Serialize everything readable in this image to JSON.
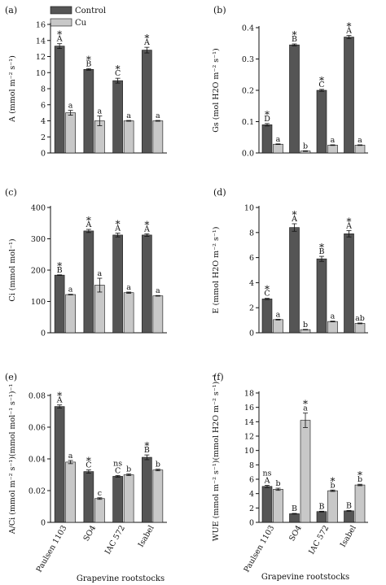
{
  "legend": [
    {
      "label": "Control",
      "color": "#555555"
    },
    {
      "label": "Cu",
      "color": "#c8c8c8"
    }
  ],
  "colors": {
    "control": "#555555",
    "cu": "#c8c8c8",
    "axis": "#111111"
  },
  "xlabel": "Grapevine rootstocks",
  "chart_data": [
    {
      "type": "bar",
      "panel_label": "(a)",
      "ylabel": "A (mmol m⁻² s⁻¹)",
      "categories": [
        "Paulsen 1103",
        "SO4",
        "IAC 572",
        "Isabel"
      ],
      "ylim": [
        0,
        16
      ],
      "yticks": [
        "0",
        "2",
        "4",
        "6",
        "8",
        "10",
        "12",
        "14",
        "16"
      ],
      "show_category_labels": false,
      "series": [
        {
          "name": "Control",
          "values": [
            13.3,
            10.4,
            9.0,
            12.8
          ],
          "errors": [
            0.3,
            0.1,
            0.3,
            0.35
          ],
          "labels": [
            "A",
            "B",
            "C",
            "A"
          ],
          "stars": [
            "*",
            "*",
            "*",
            "*"
          ]
        },
        {
          "name": "Cu",
          "values": [
            5.0,
            4.0,
            4.0,
            4.0
          ],
          "errors": [
            0.3,
            0.6,
            0.05,
            0.05
          ],
          "labels": [
            "a",
            "a",
            "a",
            "a"
          ],
          "stars": [
            "",
            "",
            "",
            ""
          ]
        }
      ]
    },
    {
      "type": "bar",
      "panel_label": "(b)",
      "ylabel": "Gs (mol H2O m⁻² s⁻¹)",
      "categories": [
        "Paulsen 1103",
        "SO4",
        "IAC 572",
        "Isabel"
      ],
      "ylim": [
        0,
        0.4
      ],
      "yticks": [
        "0.0",
        "0.1",
        "0.2",
        "0.3",
        "0.4"
      ],
      "show_category_labels": false,
      "series": [
        {
          "name": "Control",
          "values": [
            0.09,
            0.345,
            0.2,
            0.37
          ],
          "errors": [
            0.004,
            0.003,
            0.003,
            0.005
          ],
          "labels": [
            "D",
            "B",
            "C",
            "A"
          ],
          "stars": [
            "*",
            "*",
            "*",
            "*"
          ]
        },
        {
          "name": "Cu",
          "values": [
            0.028,
            0.006,
            0.025,
            0.025
          ],
          "errors": [
            0.001,
            0.001,
            0.001,
            0.001
          ],
          "labels": [
            "a",
            "b",
            "a",
            "a"
          ],
          "stars": [
            "",
            "",
            "",
            ""
          ]
        }
      ]
    },
    {
      "type": "bar",
      "panel_label": "(c)",
      "ylabel": "Ci (mmol mol⁻¹)",
      "categories": [
        "Paulsen 1103",
        "SO4",
        "IAC 572",
        "Isabel"
      ],
      "ylim": [
        0,
        400
      ],
      "yticks": [
        "0",
        "100",
        "200",
        "300",
        "400"
      ],
      "show_category_labels": false,
      "series": [
        {
          "name": "Control",
          "values": [
            184,
            325,
            312,
            312
          ],
          "errors": [
            1,
            5,
            6,
            4
          ],
          "labels": [
            "B",
            "A",
            "A",
            "A"
          ],
          "stars": [
            "*",
            "*",
            "*",
            "*"
          ]
        },
        {
          "name": "Cu",
          "values": [
            122,
            152,
            128,
            118
          ],
          "errors": [
            1,
            22,
            2,
            1
          ],
          "labels": [
            "a",
            "a",
            "a",
            "a"
          ],
          "stars": [
            "",
            "",
            "",
            ""
          ]
        }
      ]
    },
    {
      "type": "bar",
      "panel_label": "(d)",
      "ylabel": "E (mmol H2O m⁻² s⁻¹)",
      "categories": [
        "Paulsen 1103",
        "SO4",
        "IAC 572",
        "Isabel"
      ],
      "ylim": [
        0,
        10
      ],
      "yticks": [
        "0",
        "2",
        "4",
        "6",
        "8",
        "10"
      ],
      "show_category_labels": false,
      "series": [
        {
          "name": "Control",
          "values": [
            2.7,
            8.4,
            5.9,
            7.9
          ],
          "errors": [
            0.05,
            0.3,
            0.2,
            0.25
          ],
          "labels": [
            "C",
            "A",
            "B",
            "A"
          ],
          "stars": [
            "*",
            "*",
            "*",
            "*"
          ]
        },
        {
          "name": "Cu",
          "values": [
            1.05,
            0.25,
            0.9,
            0.75
          ],
          "errors": [
            0.03,
            0.02,
            0.03,
            0.03
          ],
          "labels": [
            "a",
            "b",
            "a",
            "ab"
          ],
          "stars": [
            "",
            "",
            "",
            ""
          ]
        }
      ]
    },
    {
      "type": "bar",
      "panel_label": "(e)",
      "ylabel": "A/Ci (mmol m⁻² s⁻¹)(mmol mol⁻¹ s⁻¹)⁻¹",
      "categories": [
        "Paulsen 1103",
        "SO4",
        "IAC 572",
        "Isabel"
      ],
      "ylim": [
        0,
        0.08
      ],
      "yticks": [
        "0",
        "0.02",
        "0.04",
        "0.06",
        "0.08"
      ],
      "show_category_labels": true,
      "series": [
        {
          "name": "Control",
          "values": [
            0.073,
            0.032,
            0.029,
            0.041
          ],
          "errors": [
            0.001,
            0.001,
            0.0005,
            0.0015
          ],
          "labels": [
            "A",
            "C",
            "C",
            "B"
          ],
          "stars": [
            "*",
            "*",
            "ns",
            "*"
          ]
        },
        {
          "name": "Cu",
          "values": [
            0.038,
            0.015,
            0.03,
            0.033
          ],
          "errors": [
            0.001,
            0.0005,
            0.0005,
            0.0005
          ],
          "labels": [
            "a",
            "c",
            "b",
            "b"
          ],
          "stars": [
            "",
            "",
            "",
            ""
          ]
        }
      ]
    },
    {
      "type": "bar",
      "panel_label": "(f)",
      "ylabel": "WUE (mmol m⁻² s⁻¹)(mmol H2O m⁻² s⁻¹)⁻¹",
      "categories": [
        "Paulsen 1103",
        "SO4",
        "IAC 572",
        "Isabel"
      ],
      "ylim": [
        0,
        18
      ],
      "yticks": [
        "0",
        "2",
        "4",
        "6",
        "8",
        "10",
        "12",
        "14",
        "16",
        "18"
      ],
      "show_category_labels": true,
      "series": [
        {
          "name": "Control",
          "values": [
            5.0,
            1.2,
            1.5,
            1.6
          ],
          "errors": [
            0.15,
            0.05,
            0.05,
            0.05
          ],
          "labels": [
            "A",
            "B",
            "B",
            "B"
          ],
          "stars": [
            "ns",
            "",
            "",
            ""
          ]
        },
        {
          "name": "Cu",
          "values": [
            4.6,
            14.2,
            4.4,
            5.2
          ],
          "errors": [
            0.15,
            1.0,
            0.1,
            0.1
          ],
          "labels": [
            "b",
            "a",
            "b",
            "b"
          ],
          "stars": [
            "",
            "*",
            "*",
            "*"
          ]
        }
      ]
    }
  ]
}
